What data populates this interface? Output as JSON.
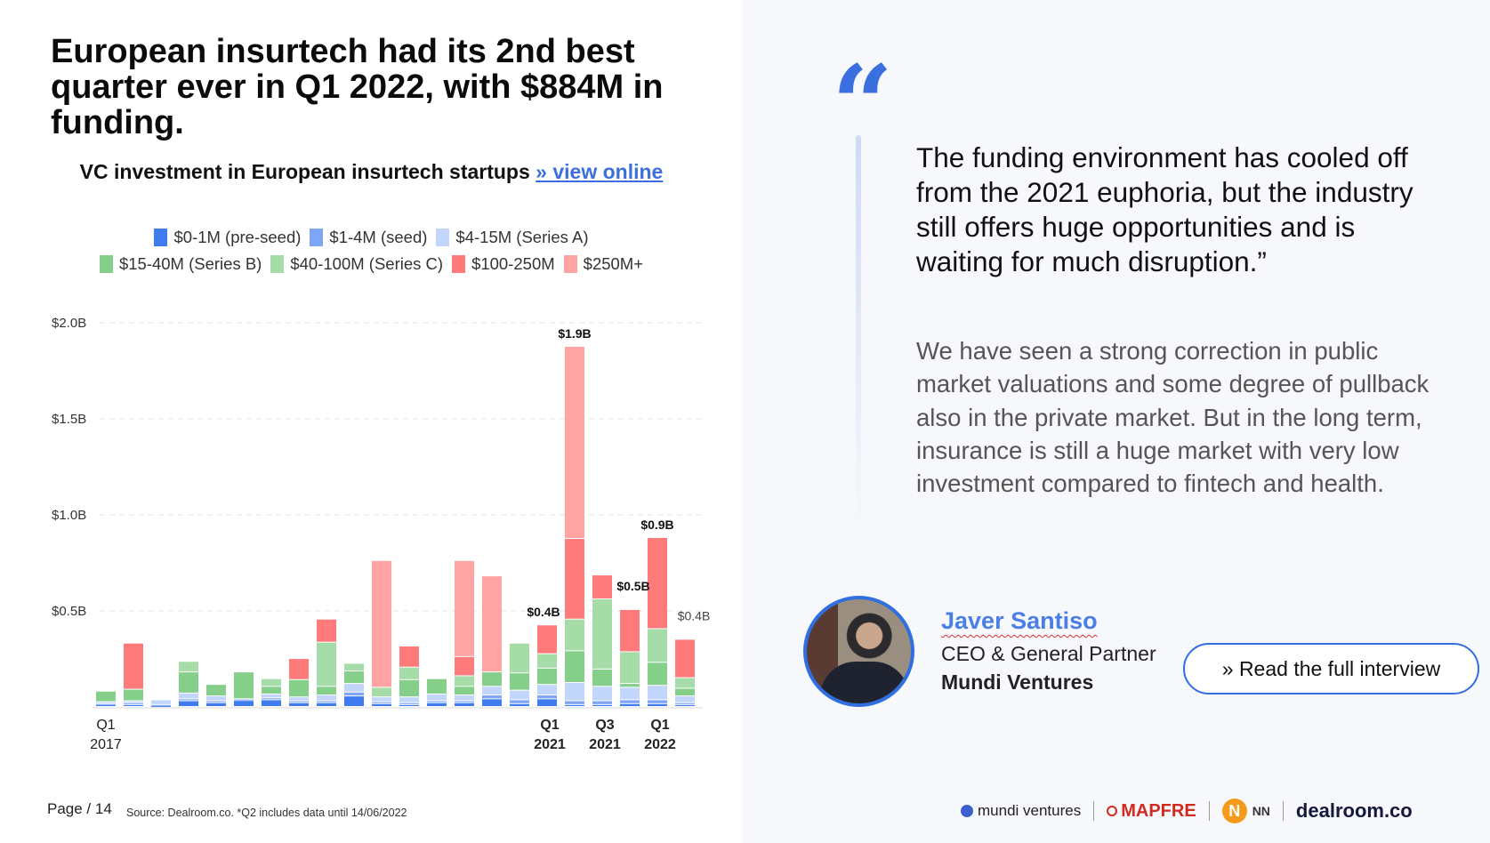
{
  "title": "European insurtech had its 2nd best quarter ever in Q1 2022, with $884M in funding.",
  "subtitle": {
    "text": "VC investment in European insurtech startups ",
    "link": "» view online"
  },
  "footer": {
    "page": "Page / 14",
    "source": "Source: Dealroom.co.   *Q2 includes data until 14/06/2022"
  },
  "quote": {
    "mark": "“",
    "text": "The funding environment has cooled off from the 2021 euphoria, but the industry still offers huge opportunities and is waiting for much disruption.”",
    "body": "We have seen a strong correction in public market valuations and some degree of pullback also in the private market. But in the long term, insurance is still a huge market with very low investment compared to fintech and health."
  },
  "person": {
    "name": "Javer Santiso",
    "role": "CEO & General Partner",
    "company": "Mundi Ventures"
  },
  "cta": "» Read the full interview",
  "logos": [
    "mundi ventures",
    "MAPFRE",
    "NN",
    "dealroom.co"
  ],
  "colors": {
    "accent": "#3b6fe0",
    "name": "#4a7fe8"
  },
  "chart_data": {
    "type": "bar",
    "stacked": true,
    "legend_placement": "top",
    "grid": true,
    "ylim": [
      0,
      2.0
    ],
    "yticks": [
      "$0.5B",
      "$1.0B",
      "$1.5B",
      "$2.0B"
    ],
    "ytick_values": [
      0.5,
      1.0,
      1.5,
      2.0
    ],
    "categories": [
      "Q1 2017",
      "Q2 2017",
      "Q3 2017",
      "Q4 2017",
      "Q1 2018",
      "Q2 2018",
      "Q3 2018",
      "Q4 2018",
      "Q1 2019",
      "Q2 2019",
      "Q3 2019",
      "Q4 2019",
      "Q1 2020",
      "Q2 2020",
      "Q3 2020",
      "Q4 2020",
      "Q1 2021",
      "Q2 2021",
      "Q3 2021",
      "Q4 2021",
      "Q1 2022",
      "Q2 2022"
    ],
    "xtick_labels": [
      {
        "index": 0,
        "line1": "Q1",
        "line2": "2017",
        "bold": false
      },
      {
        "index": 16,
        "line1": "Q1",
        "line2": "2021",
        "bold": true
      },
      {
        "index": 18,
        "line1": "Q3",
        "line2": "2021",
        "bold": true
      },
      {
        "index": 20,
        "line1": "Q1",
        "line2": "2022",
        "bold": true
      }
    ],
    "data_labels": [
      {
        "index": 16,
        "text": "$0.4B",
        "bold": true
      },
      {
        "index": 17,
        "text": "$1.9B",
        "bold": true
      },
      {
        "index": 19,
        "text": "$0.5B",
        "bold": true
      },
      {
        "index": 20,
        "text": "$0.9B",
        "bold": true
      },
      {
        "index": 21,
        "text": "$0.4B",
        "bold": false
      }
    ],
    "series": [
      {
        "name": "$0-1M (pre-seed)",
        "color": "#3f7cf0",
        "values": [
          0.01,
          0.01,
          0.005,
          0.03,
          0.02,
          0.03,
          0.035,
          0.02,
          0.02,
          0.055,
          0.015,
          0.01,
          0.02,
          0.02,
          0.04,
          0.015,
          0.04,
          0.01,
          0.01,
          0.015,
          0.015,
          0.01
        ]
      },
      {
        "name": "$1-4M (seed)",
        "color": "#7ea6f4",
        "values": [
          0.005,
          0.01,
          0.005,
          0.01,
          0.01,
          0.005,
          0.01,
          0.01,
          0.01,
          0.02,
          0.01,
          0.01,
          0.01,
          0.01,
          0.02,
          0.02,
          0.02,
          0.02,
          0.02,
          0.02,
          0.02,
          0.01
        ]
      },
      {
        "name": "$4-15M (Series A)",
        "color": "#c2d6fb",
        "values": [
          0.01,
          0.01,
          0.025,
          0.03,
          0.025,
          0.005,
          0.02,
          0.02,
          0.03,
          0.045,
          0.025,
          0.03,
          0.035,
          0.03,
          0.045,
          0.05,
          0.055,
          0.095,
          0.075,
          0.065,
          0.075,
          0.035
        ]
      },
      {
        "name": "$15-40M (Series B)",
        "color": "#85cf8a",
        "values": [
          0.055,
          0.06,
          0,
          0.11,
          0.06,
          0.14,
          0.04,
          0.09,
          0.045,
          0.065,
          0,
          0.09,
          0.08,
          0.045,
          0.075,
          0.09,
          0.085,
          0.165,
          0.09,
          0.02,
          0.12,
          0.04
        ]
      },
      {
        "name": "$40-100M (Series C)",
        "color": "#a5dca8",
        "values": [
          0,
          0,
          0,
          0.055,
          0,
          0,
          0.04,
          0,
          0.23,
          0.04,
          0.05,
          0.065,
          0,
          0.055,
          0,
          0.155,
          0.075,
          0.165,
          0.365,
          0.165,
          0.175,
          0.055
        ]
      },
      {
        "name": "$100-250M",
        "color": "#ff7b7b",
        "values": [
          0,
          0.24,
          0,
          0,
          0,
          0,
          0,
          0.11,
          0.12,
          0,
          0,
          0.11,
          0,
          0.1,
          0,
          0,
          0.15,
          0.42,
          0.125,
          0.22,
          0.475,
          0.2
        ]
      },
      {
        "name": "$250M+",
        "color": "#ffa3a3",
        "values": [
          0,
          0,
          0,
          0,
          0,
          0,
          0,
          0,
          0,
          0,
          0.66,
          0,
          0,
          0.5,
          0.5,
          0,
          0,
          1.0,
          0,
          0,
          0,
          0
        ]
      }
    ]
  }
}
